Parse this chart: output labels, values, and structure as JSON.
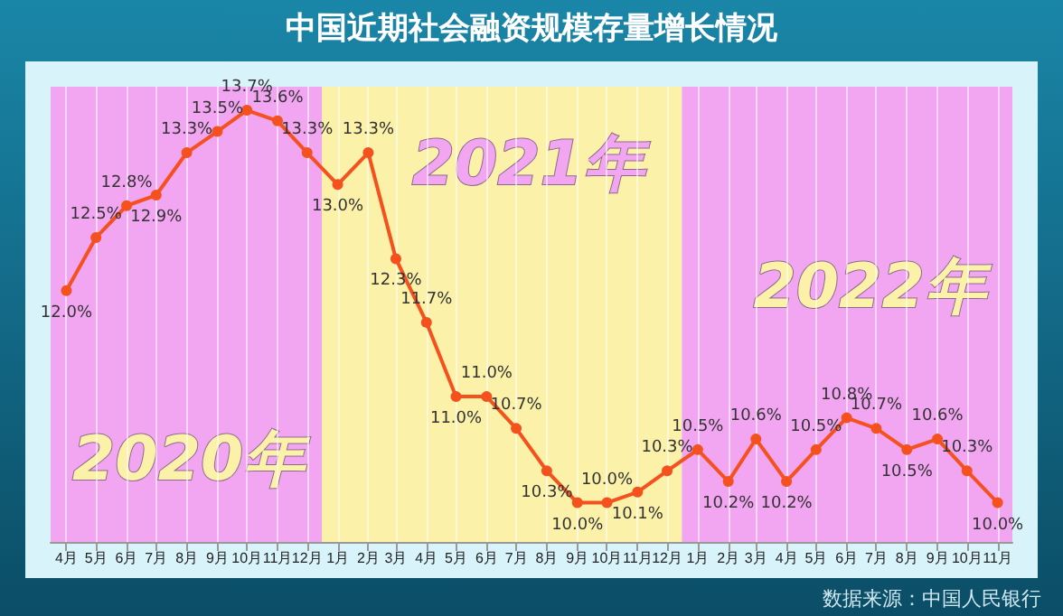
{
  "chart_data": {
    "type": "line",
    "title": "中国近期社会融资规模存量增长情况",
    "x": [
      "2020-04",
      "2020-05",
      "2020-06",
      "2020-07",
      "2020-08",
      "2020-09",
      "2020-10",
      "2020-11",
      "2020-12",
      "2021-01",
      "2021-02",
      "2021-03",
      "2021-04",
      "2021-05",
      "2021-06",
      "2021-07",
      "2021-08",
      "2021-09",
      "2021-10",
      "2021-11",
      "2021-12",
      "2022-01",
      "2022-02",
      "2022-03",
      "2022-04",
      "2022-05",
      "2022-06",
      "2022-07",
      "2022-08",
      "2022-09",
      "2022-10",
      "2022-11"
    ],
    "xlim": [
      "2020-03-16",
      "2022-11-16"
    ],
    "xticks": [
      {
        "value": "2020-04",
        "label": "4月"
      },
      {
        "value": "2020-05",
        "label": "5月"
      },
      {
        "value": "2020-06",
        "label": "6月"
      },
      {
        "value": "2020-07",
        "label": "7月"
      },
      {
        "value": "2020-08",
        "label": "8月"
      },
      {
        "value": "2020-09",
        "label": "9月"
      },
      {
        "value": "2020-10",
        "label": "10月"
      },
      {
        "value": "2020-11",
        "label": "11月"
      },
      {
        "value": "2020-12",
        "label": "12月"
      },
      {
        "value": "2021-01",
        "label": "1月"
      },
      {
        "value": "2021-02",
        "label": "2月"
      },
      {
        "value": "2021-03",
        "label": "3月"
      },
      {
        "value": "2021-04",
        "label": "4月"
      },
      {
        "value": "2021-05",
        "label": "5月"
      },
      {
        "value": "2021-06",
        "label": "6月"
      },
      {
        "value": "2021-07",
        "label": "7月"
      },
      {
        "value": "2021-08",
        "label": "8月"
      },
      {
        "value": "2021-09",
        "label": "9月"
      },
      {
        "value": "2021-10",
        "label": "10月"
      },
      {
        "value": "2021-11",
        "label": "11月"
      },
      {
        "value": "2021-12",
        "label": "12月"
      },
      {
        "value": "2022-01",
        "label": "1月"
      },
      {
        "value": "2022-02",
        "label": "2月"
      },
      {
        "value": "2022-03",
        "label": "3月"
      },
      {
        "value": "2022-04",
        "label": "4月"
      },
      {
        "value": "2022-05",
        "label": "5月"
      },
      {
        "value": "2022-06",
        "label": "6月"
      },
      {
        "value": "2022-07",
        "label": "7月"
      },
      {
        "value": "2022-08",
        "label": "8月"
      },
      {
        "value": "2022-09",
        "label": "9月"
      },
      {
        "value": "2022-10",
        "label": "10月"
      },
      {
        "value": "2022-11",
        "label": "11月"
      }
    ],
    "series": [
      {
        "color": "#f4511e",
        "values": [
          12.0,
          12.5,
          12.8,
          12.9,
          13.3,
          13.5,
          13.7,
          13.6,
          13.3,
          13.0,
          13.3,
          12.3,
          11.7,
          11.0,
          11.0,
          10.7,
          10.3,
          10.0,
          10.0,
          10.1,
          10.3,
          10.5,
          10.2,
          10.6,
          10.2,
          10.5,
          10.8,
          10.7,
          10.5,
          10.6,
          10.3,
          10.0
        ],
        "value_labels": [
          "12.0%",
          "12.5%",
          "12.8%",
          "12.9%",
          "13.3%",
          "13.5%",
          "13.7%",
          "13.6%",
          "13.3%",
          "13.0%",
          "13.3%",
          "12.3%",
          "11.7%",
          "11.0%",
          "11.0%",
          "10.7%",
          "10.3%",
          "10.0%",
          "10.0%",
          "10.1%",
          "10.3%",
          "10.5%",
          "10.2%",
          "10.6%",
          "10.2%",
          "10.5%",
          "10.8%",
          "10.7%",
          "10.5%",
          "10.6%",
          "10.3%",
          "10.0%"
        ]
      }
    ],
    "bands": [
      {
        "axis": "x",
        "from": "2020-03-16",
        "to": "2020-12-16",
        "label": "2020年",
        "color": "#f2a6f2"
      },
      {
        "axis": "x",
        "from": "2020-12-16",
        "to": "2021-12-16",
        "label": "2021年",
        "color": "#fbf1a9"
      },
      {
        "axis": "x",
        "from": "2021-12-16",
        "to": "2022-11-16",
        "label": "2022年",
        "color": "#f2a6f2"
      }
    ],
    "annotations": [
      "数据来源：中国人民银行"
    ],
    "marker": "circle",
    "line_style": "solid",
    "grid": "x",
    "tick_labels": "x"
  }
}
